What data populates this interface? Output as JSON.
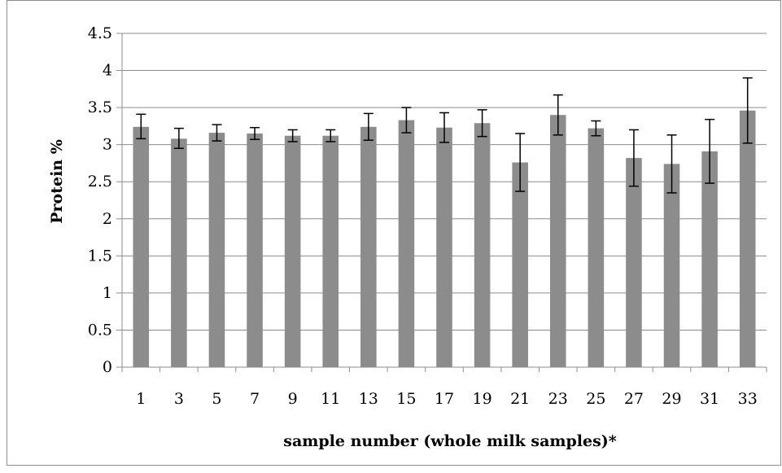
{
  "chart_data": {
    "type": "bar",
    "title": "",
    "xlabel": "sample number (whole milk samples)*",
    "ylabel": "Protein %",
    "ylim": [
      0,
      4.5
    ],
    "yticks": [
      "0",
      "0.5",
      "1",
      "1.5",
      "2",
      "2.5",
      "3",
      "3.5",
      "4",
      "4.5"
    ],
    "grid": true,
    "legend": "none",
    "bar_color": "#8c8c8c",
    "categories": [
      "1",
      "3",
      "5",
      "7",
      "9",
      "11",
      "13",
      "15",
      "17",
      "19",
      "21",
      "23",
      "25",
      "27",
      "29",
      "31",
      "33"
    ],
    "values": [
      3.24,
      3.08,
      3.16,
      3.15,
      3.12,
      3.12,
      3.24,
      3.33,
      3.23,
      3.29,
      2.76,
      3.4,
      3.22,
      2.82,
      2.74,
      2.91,
      3.46
    ],
    "error_upper": [
      3.41,
      3.22,
      3.27,
      3.23,
      3.2,
      3.2,
      3.42,
      3.5,
      3.43,
      3.47,
      3.15,
      3.67,
      3.32,
      3.2,
      3.13,
      3.34,
      3.9
    ],
    "error_lower": [
      3.08,
      2.95,
      3.05,
      3.07,
      3.04,
      3.04,
      3.06,
      3.16,
      3.03,
      3.11,
      2.37,
      3.13,
      3.12,
      2.44,
      2.35,
      2.48,
      3.02
    ]
  }
}
